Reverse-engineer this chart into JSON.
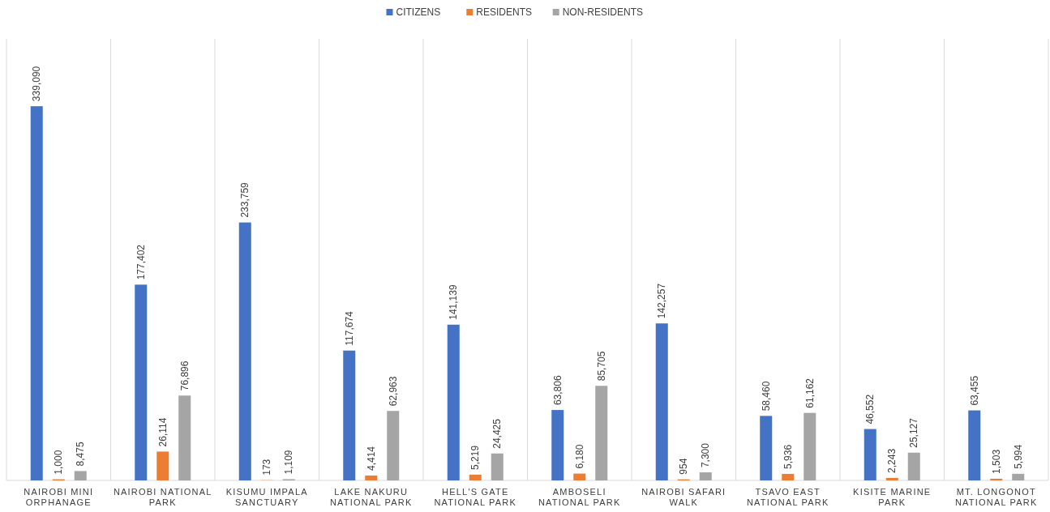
{
  "chart_data": {
    "type": "bar",
    "categories": [
      "NAIROBI MINI ORPHANAGE",
      "NAIROBI NATIONAL PARK",
      "KISUMU IMPALA SANCTUARY",
      "LAKE NAKURU NATIONAL PARK",
      "HELL'S GATE NATIONAL PARK",
      "AMBOSELI NATIONAL PARK",
      "NAIROBI SAFARI WALK",
      "TSAVO EAST NATIONAL PARK",
      "KISITE MARINE PARK",
      "MT. LONGONOT NATIONAL PARK"
    ],
    "series": [
      {
        "name": "CITIZENS",
        "color": "#4472c4",
        "values": [
          339090,
          177402,
          233759,
          117674,
          141139,
          63806,
          142257,
          58460,
          46552,
          63455
        ],
        "value_labels": [
          "339,090",
          "177,402",
          "233,759",
          "117,674",
          "141,139",
          "63,806",
          "142,257",
          "58,460",
          "46,552",
          "63,455"
        ]
      },
      {
        "name": "RESIDENTS",
        "color": "#ed7d31",
        "values": [
          1000,
          26114,
          173,
          4414,
          5219,
          6180,
          954,
          5936,
          2243,
          1503
        ],
        "value_labels": [
          "1,000",
          "26,114",
          "173",
          "4,414",
          "5,219",
          "6,180",
          "954",
          "5,936",
          "2,243",
          "1,503"
        ]
      },
      {
        "name": "NON-RESIDENTS",
        "color": "#a5a5a5",
        "values": [
          8475,
          76896,
          1109,
          62963,
          24425,
          85705,
          7300,
          61162,
          25127,
          5994
        ],
        "value_labels": [
          "8,475",
          "76,896",
          "1,109",
          "62,963",
          "24,425",
          "85,705",
          "7,300",
          "61,162",
          "25,127",
          "5,994"
        ]
      }
    ],
    "grid": "x",
    "legend": "top"
  }
}
